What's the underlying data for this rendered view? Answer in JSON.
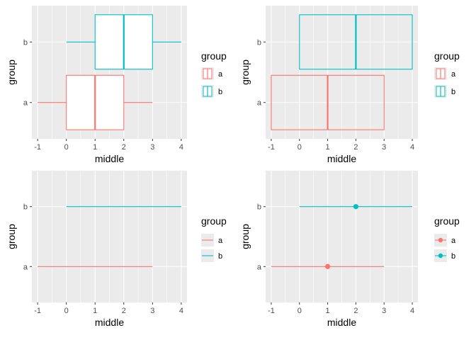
{
  "colors": {
    "a": "#F8766D",
    "b": "#00BFC4"
  },
  "legend": {
    "title": "group",
    "labels": [
      "a",
      "b"
    ]
  },
  "chart_data": [
    {
      "type": "crossbar",
      "title": "",
      "xlabel": "middle",
      "ylabel": "group",
      "xlim": [
        -1.2,
        4.2
      ],
      "xticks": [
        "-1",
        "0",
        "1",
        "2",
        "3",
        "4"
      ],
      "categories": [
        "a",
        "b"
      ],
      "series": [
        {
          "name": "a",
          "ymin": -1,
          "lower": 0,
          "middle": 1,
          "upper": 2,
          "ymax": 3
        },
        {
          "name": "b",
          "ymin": 0,
          "lower": 1,
          "middle": 2,
          "upper": 3,
          "ymax": 4
        }
      ],
      "legend_key": "box"
    },
    {
      "type": "crossbar",
      "title": "",
      "xlabel": "middle",
      "ylabel": "group",
      "xlim": [
        -1.2,
        4.2
      ],
      "xticks": [
        "-1",
        "0",
        "1",
        "2",
        "3",
        "4"
      ],
      "categories": [
        "a",
        "b"
      ],
      "series": [
        {
          "name": "a",
          "xmin": -1,
          "middle": 1,
          "xmax": 3
        },
        {
          "name": "b",
          "xmin": 0,
          "middle": 2,
          "xmax": 4
        }
      ],
      "legend_key": "box"
    },
    {
      "type": "linerange",
      "title": "",
      "xlabel": "middle",
      "ylabel": "group",
      "xlim": [
        -1.2,
        4.2
      ],
      "xticks": [
        "-1",
        "0",
        "1",
        "2",
        "3",
        "4"
      ],
      "categories": [
        "a",
        "b"
      ],
      "series": [
        {
          "name": "a",
          "xmin": -1,
          "xmax": 3
        },
        {
          "name": "b",
          "xmin": 0,
          "xmax": 4
        }
      ],
      "legend_key": "line"
    },
    {
      "type": "pointrange",
      "title": "",
      "xlabel": "middle",
      "ylabel": "group",
      "xlim": [
        -1.2,
        4.2
      ],
      "xticks": [
        "-1",
        "0",
        "1",
        "2",
        "3",
        "4"
      ],
      "categories": [
        "a",
        "b"
      ],
      "series": [
        {
          "name": "a",
          "xmin": -1,
          "middle": 1,
          "xmax": 3
        },
        {
          "name": "b",
          "xmin": 0,
          "middle": 2,
          "xmax": 4
        }
      ],
      "legend_key": "pointline"
    }
  ]
}
